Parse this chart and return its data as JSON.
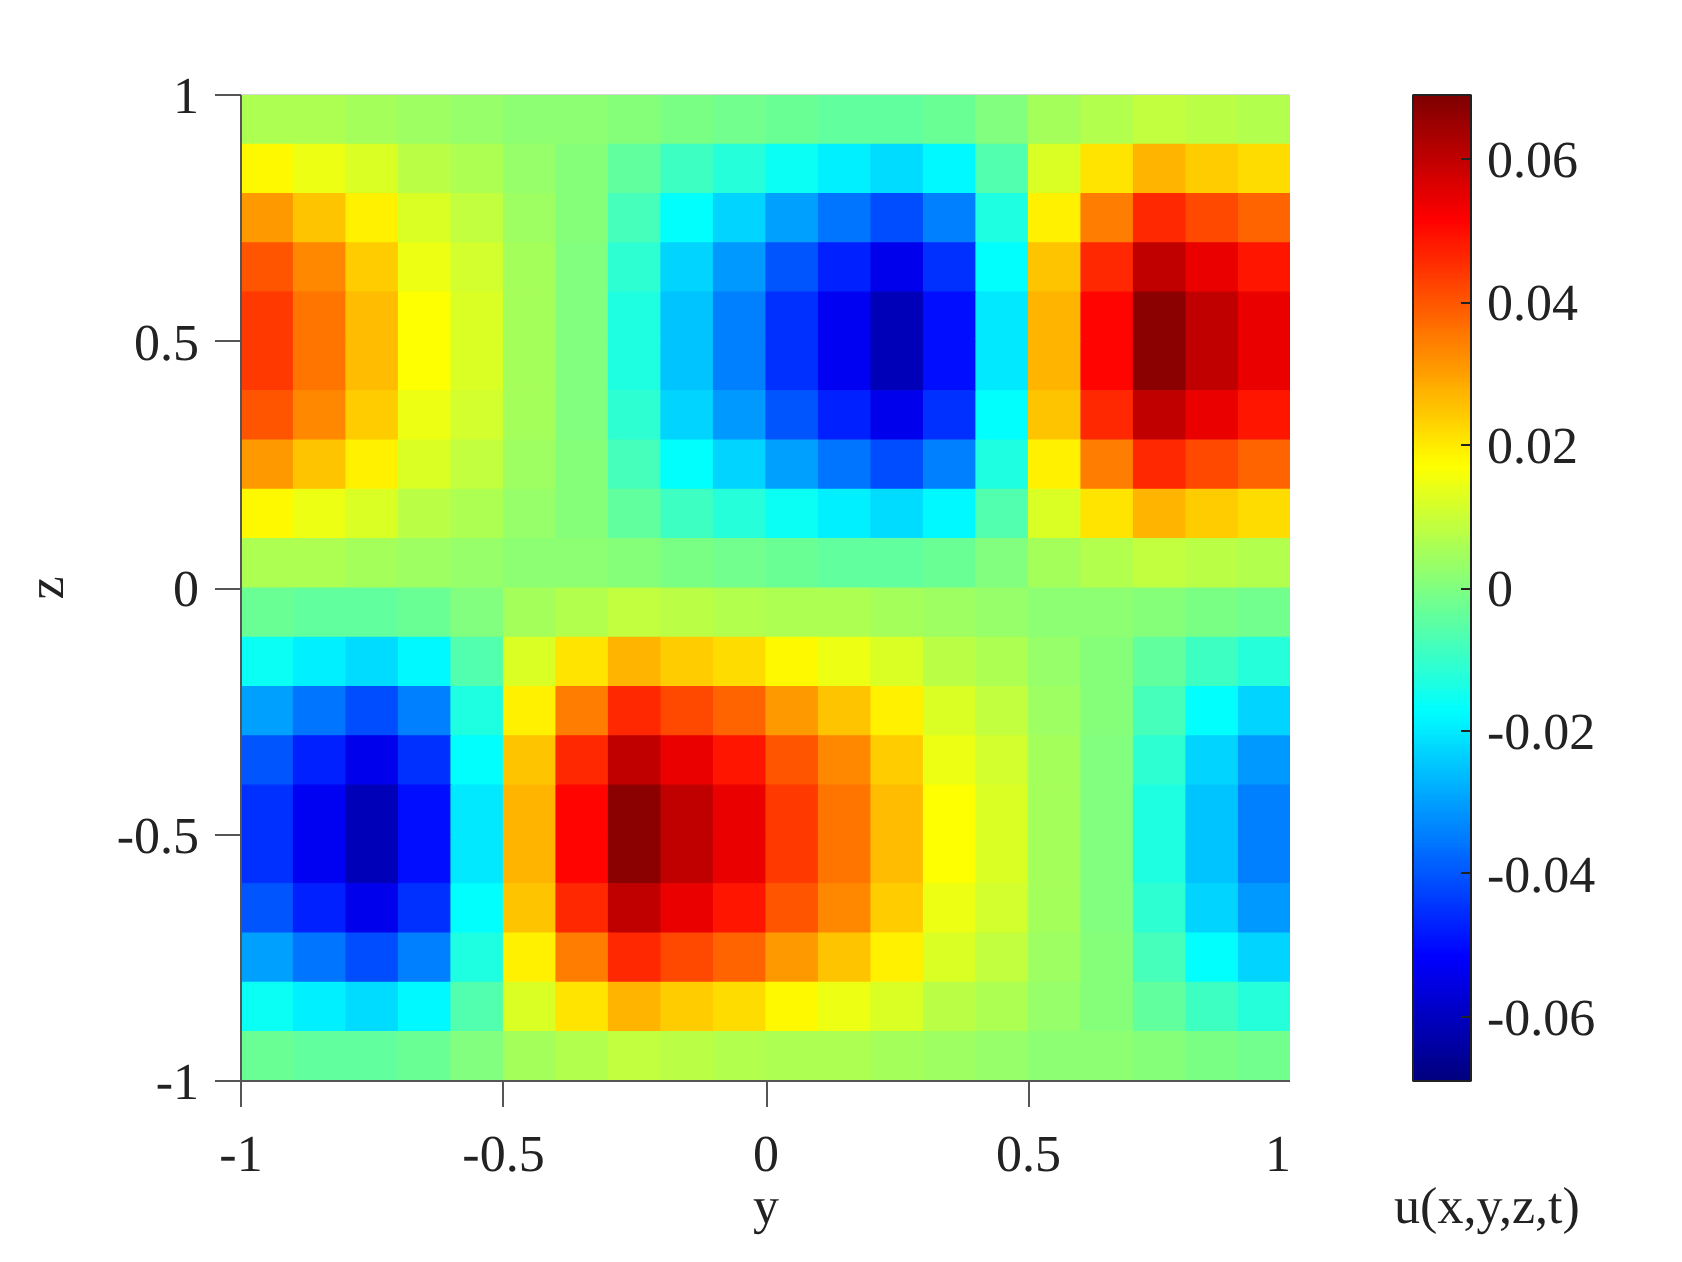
{
  "chart_data": {
    "type": "heatmap",
    "xlabel": "y",
    "ylabel": "z",
    "clabel": "u(x,y,z,t)",
    "x": [
      -0.95,
      -0.85,
      -0.75,
      -0.65,
      -0.55,
      -0.45,
      -0.35,
      -0.25,
      -0.15,
      -0.05,
      0.05,
      0.15,
      0.25,
      0.35,
      0.45,
      0.55,
      0.65,
      0.75,
      0.85,
      0.95
    ],
    "xlim": [
      -1,
      1
    ],
    "ylim": [
      -1,
      1
    ],
    "xticks": [
      -1,
      -0.5,
      0,
      0.5,
      1
    ],
    "yticks": [
      -1,
      -0.5,
      0,
      0.5,
      1
    ],
    "clim": [
      -0.069,
      0.069
    ],
    "cticks": [
      -0.06,
      -0.04,
      -0.02,
      0,
      0.02,
      0.04,
      0.06
    ],
    "cells": [
      [
        0.006,
        0.006,
        0.005,
        0.004,
        0.003,
        0.002,
        0.002,
        0.001,
        -0.001,
        -0.002,
        -0.003,
        -0.004,
        -0.004,
        -0.003,
        0.0,
        0.005,
        0.007,
        0.009,
        0.008,
        0.007
      ],
      [
        0.018,
        0.015,
        0.012,
        0.008,
        0.006,
        0.003,
        0.001,
        -0.004,
        -0.009,
        -0.012,
        -0.016,
        -0.019,
        -0.022,
        -0.018,
        -0.006,
        0.012,
        0.021,
        0.027,
        0.024,
        0.022
      ],
      [
        0.031,
        0.025,
        0.019,
        0.012,
        0.009,
        0.004,
        0.001,
        -0.008,
        -0.017,
        -0.023,
        -0.03,
        -0.036,
        -0.041,
        -0.034,
        -0.013,
        0.019,
        0.035,
        0.046,
        0.042,
        0.038
      ],
      [
        0.04,
        0.033,
        0.024,
        0.015,
        0.011,
        0.005,
        0.0,
        -0.011,
        -0.023,
        -0.031,
        -0.04,
        -0.047,
        -0.054,
        -0.045,
        -0.017,
        0.025,
        0.046,
        0.06,
        0.054,
        0.049
      ],
      [
        0.044,
        0.036,
        0.026,
        0.017,
        0.012,
        0.005,
        0.0,
        -0.013,
        -0.025,
        -0.034,
        -0.045,
        -0.053,
        -0.061,
        -0.05,
        -0.02,
        0.027,
        0.051,
        0.067,
        0.06,
        0.054
      ],
      [
        0.044,
        0.036,
        0.026,
        0.017,
        0.012,
        0.005,
        0.0,
        -0.013,
        -0.025,
        -0.034,
        -0.045,
        -0.053,
        -0.061,
        -0.05,
        -0.02,
        0.027,
        0.051,
        0.067,
        0.06,
        0.054
      ],
      [
        0.04,
        0.033,
        0.024,
        0.015,
        0.011,
        0.005,
        0.0,
        -0.011,
        -0.023,
        -0.031,
        -0.04,
        -0.047,
        -0.054,
        -0.045,
        -0.017,
        0.025,
        0.046,
        0.06,
        0.054,
        0.049
      ],
      [
        0.031,
        0.025,
        0.019,
        0.012,
        0.009,
        0.004,
        0.001,
        -0.008,
        -0.017,
        -0.023,
        -0.03,
        -0.036,
        -0.041,
        -0.034,
        -0.013,
        0.019,
        0.035,
        0.046,
        0.042,
        0.038
      ],
      [
        0.018,
        0.015,
        0.012,
        0.008,
        0.006,
        0.003,
        0.001,
        -0.004,
        -0.009,
        -0.012,
        -0.016,
        -0.019,
        -0.022,
        -0.018,
        -0.006,
        0.012,
        0.021,
        0.027,
        0.024,
        0.022
      ],
      [
        0.006,
        0.006,
        0.005,
        0.004,
        0.003,
        0.002,
        0.002,
        0.001,
        -0.001,
        -0.002,
        -0.003,
        -0.004,
        -0.004,
        -0.003,
        0.0,
        0.005,
        0.007,
        0.009,
        0.008,
        0.007
      ],
      [
        -0.003,
        -0.004,
        -0.004,
        -0.003,
        0.0,
        0.005,
        0.007,
        0.009,
        0.008,
        0.007,
        0.006,
        0.006,
        0.005,
        0.004,
        0.003,
        0.002,
        0.002,
        0.001,
        -0.001,
        -0.002
      ],
      [
        -0.016,
        -0.019,
        -0.022,
        -0.018,
        -0.006,
        0.012,
        0.021,
        0.027,
        0.024,
        0.022,
        0.018,
        0.015,
        0.012,
        0.008,
        0.006,
        0.003,
        0.001,
        -0.004,
        -0.009,
        -0.012
      ],
      [
        -0.03,
        -0.036,
        -0.041,
        -0.034,
        -0.013,
        0.019,
        0.035,
        0.046,
        0.042,
        0.038,
        0.031,
        0.025,
        0.019,
        0.012,
        0.009,
        0.004,
        0.001,
        -0.008,
        -0.017,
        -0.023
      ],
      [
        -0.04,
        -0.047,
        -0.054,
        -0.045,
        -0.017,
        0.025,
        0.046,
        0.06,
        0.054,
        0.049,
        0.04,
        0.033,
        0.024,
        0.015,
        0.011,
        0.005,
        0.0,
        -0.011,
        -0.023,
        -0.031
      ],
      [
        -0.045,
        -0.053,
        -0.061,
        -0.05,
        -0.02,
        0.027,
        0.051,
        0.067,
        0.06,
        0.054,
        0.044,
        0.036,
        0.026,
        0.017,
        0.012,
        0.005,
        0.0,
        -0.013,
        -0.025,
        -0.034
      ],
      [
        -0.045,
        -0.053,
        -0.061,
        -0.05,
        -0.02,
        0.027,
        0.051,
        0.067,
        0.06,
        0.054,
        0.044,
        0.036,
        0.026,
        0.017,
        0.012,
        0.005,
        0.0,
        -0.013,
        -0.025,
        -0.034
      ],
      [
        -0.04,
        -0.047,
        -0.054,
        -0.045,
        -0.017,
        0.025,
        0.046,
        0.06,
        0.054,
        0.049,
        0.04,
        0.033,
        0.024,
        0.015,
        0.011,
        0.005,
        0.0,
        -0.011,
        -0.023,
        -0.031
      ],
      [
        -0.03,
        -0.036,
        -0.041,
        -0.034,
        -0.013,
        0.019,
        0.035,
        0.046,
        0.042,
        0.038,
        0.031,
        0.025,
        0.019,
        0.012,
        0.009,
        0.004,
        0.001,
        -0.008,
        -0.017,
        -0.023
      ],
      [
        -0.016,
        -0.019,
        -0.022,
        -0.018,
        -0.006,
        0.012,
        0.021,
        0.027,
        0.024,
        0.022,
        0.018,
        0.015,
        0.012,
        0.008,
        0.006,
        0.003,
        0.001,
        -0.004,
        -0.009,
        -0.012
      ],
      [
        -0.003,
        -0.004,
        -0.004,
        -0.003,
        0.0,
        0.005,
        0.007,
        0.009,
        0.008,
        0.007,
        0.006,
        0.006,
        0.005,
        0.004,
        0.003,
        0.002,
        0.002,
        0.001,
        -0.001,
        -0.002
      ]
    ]
  }
}
